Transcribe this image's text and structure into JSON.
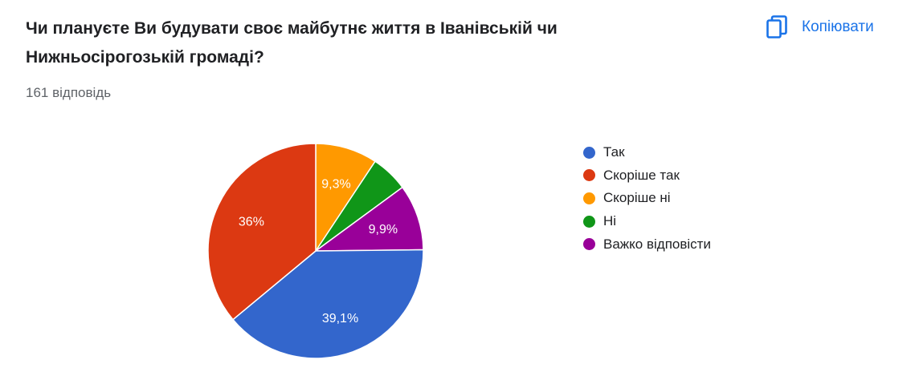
{
  "question": {
    "title": "Чи плануєте Ви будувати своє майбутнє життя в Іванівській чи Нижньосірогозькій громаді?",
    "responses": "161 відповідь"
  },
  "toolbar": {
    "copy_label": "Копіювати",
    "copy_icon": "copy-icon"
  },
  "chart_data": {
    "type": "pie",
    "unit": "%",
    "slices": [
      {
        "label": "Так",
        "value": 39.1,
        "display": "39,1%",
        "color": "#3366cc"
      },
      {
        "label": "Скоріше так",
        "value": 36.0,
        "display": "36%",
        "color": "#dc3912"
      },
      {
        "label": "Скоріше ні",
        "value": 9.3,
        "display": "9,3%",
        "color": "#ff9900"
      },
      {
        "label": "Ні",
        "value": 5.6,
        "display": "",
        "color": "#109618"
      },
      {
        "label": "Важко відповісти",
        "value": 9.9,
        "display": "9,9%",
        "color": "#990099"
      }
    ],
    "legend_position": "right"
  }
}
